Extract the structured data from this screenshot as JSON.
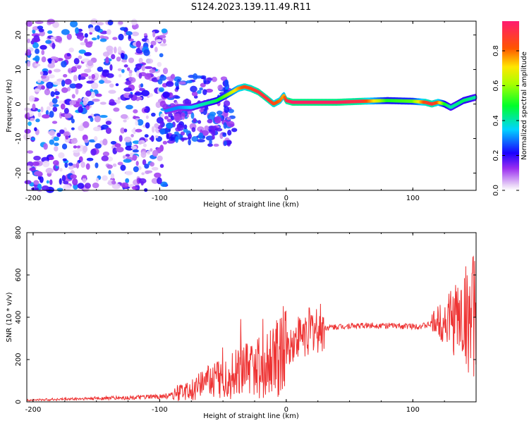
{
  "title": "S124.2023.139.11.49.R11",
  "chart_data": [
    {
      "type": "heatmap",
      "xlabel": "Height of straight line (km)",
      "ylabel": "Frequency (Hz)",
      "xlim": [
        -205,
        150
      ],
      "ylim": [
        -25,
        24
      ],
      "xticks": [
        "-200",
        "-100",
        "0",
        "100"
      ],
      "yticks": [
        "-20",
        "-10",
        "0",
        "10",
        "20"
      ],
      "colorbar": {
        "label": "Normalized spectral amplitude",
        "ticks": [
          "0.0",
          "0.2",
          "0.4",
          "0.6",
          "0.8"
        ],
        "range": [
          0,
          0.97
        ]
      },
      "ridge": {
        "x": [
          -95,
          -85,
          -75,
          -65,
          -55,
          -45,
          -38,
          -33,
          -28,
          -22,
          -15,
          -10,
          -5,
          -2,
          0,
          5,
          20,
          40,
          60,
          80,
          100,
          110,
          115,
          120,
          125,
          130,
          140,
          150
        ],
        "y": [
          -2,
          -1,
          -1,
          0,
          1,
          3,
          4.5,
          5,
          4.5,
          3.5,
          1.5,
          0,
          1,
          2.5,
          1,
          0.5,
          0.5,
          0.5,
          0.8,
          1,
          0.8,
          0.5,
          0,
          0.5,
          0,
          -1,
          1,
          2
        ],
        "amplitude": [
          0.3,
          0.3,
          0.35,
          0.4,
          0.45,
          0.6,
          0.75,
          0.85,
          0.85,
          0.9,
          0.9,
          0.85,
          0.8,
          0.75,
          0.9,
          0.95,
          0.95,
          0.95,
          0.9,
          0.5,
          0.55,
          0.85,
          0.9,
          0.8,
          0.5,
          0.4,
          0.45,
          0.4
        ]
      }
    },
    {
      "type": "line",
      "xlabel": "Height of straight line (km)",
      "ylabel": "SNR (10 * v/v)",
      "xlim": [
        -205,
        150
      ],
      "ylim": [
        0,
        800
      ],
      "xticks": [
        "-200",
        "-100",
        "0",
        "100"
      ],
      "yticks": [
        "0",
        "200",
        "400",
        "600",
        "800"
      ],
      "color": "#ee3333",
      "series": [
        {
          "x": [
            -205,
            -180,
            -160,
            -140,
            -120,
            -100,
            -90,
            -80,
            -70,
            -60,
            -50,
            -40,
            -30,
            -20,
            -10,
            0,
            10,
            20,
            30,
            40,
            50,
            60,
            70,
            80,
            90,
            100,
            110,
            115,
            120,
            130,
            140,
            150
          ],
          "values": [
            8,
            12,
            15,
            18,
            20,
            25,
            30,
            50,
            70,
            100,
            110,
            130,
            150,
            170,
            200,
            250,
            310,
            340,
            350,
            355,
            360,
            360,
            362,
            360,
            358,
            358,
            360,
            370,
            380,
            390,
            400,
            410
          ]
        }
      ]
    }
  ]
}
